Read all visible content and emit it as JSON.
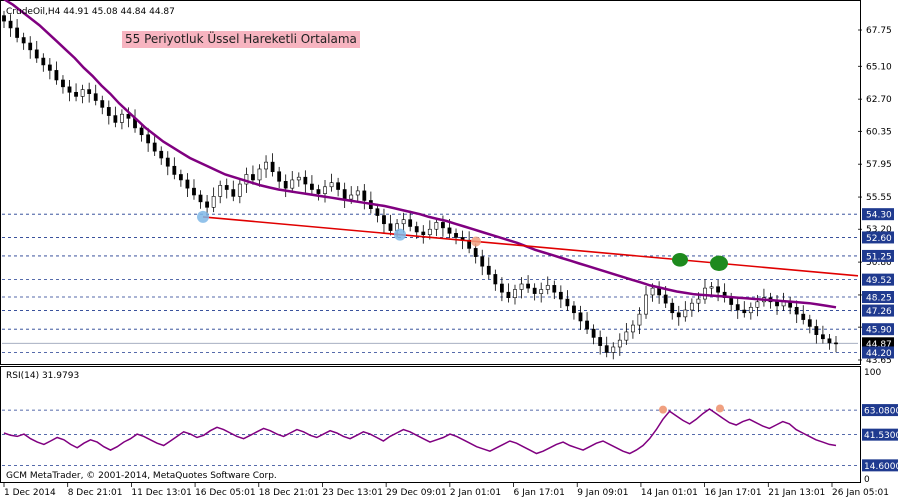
{
  "header": {
    "symbol_line": "CrudeOil,H4  44.91 45.08 44.84 44.87"
  },
  "annotation": {
    "ma_label": "55 Periyotluk Üssel Hareketli Ortalama",
    "ma_label_bg": "#f7b4c0"
  },
  "rsi": {
    "label": "RSI(14) 31.9793",
    "levels": [
      {
        "label": "63.0800",
        "value": 63.08
      },
      {
        "label": "41.5300",
        "value": 41.53
      },
      {
        "label": "14.6000",
        "value": 14.6
      }
    ],
    "scale_labels": [
      "100",
      "0"
    ]
  },
  "copyright": "GCM MetaTrader, © 2001-2014, MetaQuotes Software Corp.",
  "price_axis": {
    "ticks": [
      "67.75",
      "65.10",
      "62.70",
      "60.35",
      "57.95",
      "55.55",
      "53.20",
      "50.80",
      "48.40",
      "46.05",
      "43.65"
    ],
    "tick_values": [
      67.75,
      65.1,
      62.7,
      60.35,
      57.95,
      55.55,
      53.2,
      50.8,
      48.4,
      46.05,
      43.65
    ],
    "level_labels": [
      {
        "label": "54.30",
        "value": 54.3,
        "color": "#1f3a8f"
      },
      {
        "label": "52.60",
        "value": 52.6,
        "color": "#1f3a8f"
      },
      {
        "label": "51.25",
        "value": 51.25,
        "color": "#1f3a8f"
      },
      {
        "label": "49.52",
        "value": 49.52,
        "color": "#1f3a8f"
      },
      {
        "label": "48.25",
        "value": 48.25,
        "color": "#1f3a8f"
      },
      {
        "label": "47.26",
        "value": 47.26,
        "color": "#1f3a8f"
      },
      {
        "label": "45.90",
        "value": 45.9,
        "color": "#1f3a8f"
      },
      {
        "label": "44.87",
        "value": 44.87,
        "color": "#000000"
      },
      {
        "label": "44.20",
        "value": 44.2,
        "color": "#1f3a8f"
      }
    ]
  },
  "time_axis": {
    "ticks": [
      "1 Dec 2014",
      "8 Dec 21:01",
      "11 Dec 13:01",
      "16 Dec 05:01",
      "18 Dec 21:01",
      "23 Dec 13:01",
      "29 Dec 09:01",
      "2 Jan 01:01",
      "6 Jan 17:01",
      "9 Jan 09:01",
      "14 Jan 01:01",
      "16 Jan 17:01",
      "21 Jan 13:01",
      "26 Jan 05:01"
    ]
  },
  "colors": {
    "ema": "#800080",
    "trendline": "#e00000",
    "rsi_line": "#800080",
    "grid_dash": "#1f3a8f",
    "candle": "#000000"
  },
  "chart_data": {
    "type": "line",
    "price_closes": [
      68.4,
      67.9,
      67.2,
      66.8,
      66.3,
      65.7,
      65.2,
      64.8,
      64.1,
      63.6,
      63.2,
      62.9,
      63.4,
      63.1,
      62.6,
      62.1,
      61.5,
      61.0,
      61.6,
      61.3,
      60.6,
      60.1,
      59.5,
      58.9,
      58.4,
      57.8,
      57.2,
      56.8,
      56.2,
      55.7,
      55.2,
      54.8,
      55.6,
      56.4,
      56.1,
      55.6,
      56.5,
      57.2,
      56.8,
      57.6,
      58.1,
      57.4,
      56.7,
      56.2,
      56.8,
      57.0,
      56.5,
      56.1,
      55.8,
      56.3,
      56.6,
      56.1,
      55.4,
      55.7,
      56.0,
      55.3,
      54.7,
      54.2,
      53.6,
      53.1,
      53.6,
      53.9,
      53.4,
      53.0,
      52.8,
      53.2,
      53.7,
      53.3,
      52.9,
      52.6,
      52.4,
      51.8,
      51.2,
      50.5,
      49.9,
      49.2,
      48.6,
      48.2,
      48.8,
      49.2,
      48.9,
      48.5,
      48.8,
      49.1,
      48.6,
      48.1,
      47.6,
      47.1,
      46.5,
      45.9,
      45.3,
      44.7,
      44.2,
      44.6,
      45.1,
      45.7,
      46.2,
      47.0,
      48.4,
      48.9,
      48.4,
      47.8,
      47.1,
      46.8,
      47.3,
      47.8,
      48.1,
      48.9,
      49.0,
      48.6,
      48.2,
      47.7,
      47.3,
      47.1,
      47.5,
      47.9,
      48.2,
      47.9,
      47.6,
      47.9,
      47.5,
      47.0,
      46.6,
      46.1,
      45.5,
      45.2,
      44.9,
      44.87
    ],
    "ema55": [
      70.0,
      69.6,
      69.1,
      68.6,
      68.1,
      67.5,
      66.9,
      66.3,
      65.7,
      65.0,
      64.4,
      63.7,
      63.1,
      62.4,
      61.8,
      61.2,
      60.6,
      60.1,
      59.6,
      59.2,
      58.8,
      58.4,
      58.1,
      57.8,
      57.5,
      57.2,
      57.0,
      56.8,
      56.6,
      56.4,
      56.25,
      56.1,
      56.0,
      55.9,
      55.8,
      55.7,
      55.6,
      55.5,
      55.4,
      55.3,
      55.2,
      55.1,
      55.0,
      54.9,
      54.75,
      54.6,
      54.45,
      54.3,
      54.1,
      53.95,
      53.8,
      53.6,
      53.4,
      53.2,
      53.0,
      52.8,
      52.6,
      52.4,
      52.2,
      51.95,
      51.7,
      51.5,
      51.3,
      51.1,
      50.9,
      50.7,
      50.5,
      50.3,
      50.1,
      49.9,
      49.7,
      49.5,
      49.3,
      49.1,
      48.95,
      48.8,
      48.65,
      48.55,
      48.45,
      48.4,
      48.35,
      48.3,
      48.25,
      48.2,
      48.15,
      48.1,
      48.05,
      48.0,
      47.95,
      47.9,
      47.85,
      47.8,
      47.7,
      47.6,
      47.5
    ],
    "trendline": {
      "start_value": 54.1,
      "end_value": 49.8
    },
    "rsi_values": [
      43,
      41,
      40,
      42,
      38,
      35,
      33,
      36,
      39,
      37,
      33,
      30,
      34,
      37,
      35,
      31,
      28,
      31,
      35,
      38,
      42,
      40,
      37,
      34,
      32,
      36,
      40,
      44,
      42,
      39,
      41,
      45,
      48,
      46,
      43,
      40,
      38,
      41,
      44,
      47,
      45,
      42,
      40,
      43,
      46,
      44,
      41,
      39,
      42,
      45,
      43,
      40,
      38,
      41,
      44,
      42,
      39,
      36,
      40,
      43,
      46,
      44,
      41,
      38,
      35,
      37,
      39,
      42,
      40,
      37,
      34,
      31,
      29,
      27,
      30,
      33,
      36,
      34,
      31,
      28,
      25,
      27,
      30,
      33,
      35,
      32,
      30,
      28,
      31,
      34,
      36,
      33,
      30,
      27,
      25,
      28,
      32,
      38,
      46,
      55,
      62,
      58,
      54,
      51,
      55,
      60,
      64,
      60,
      56,
      52,
      50,
      53,
      55,
      52,
      49,
      47,
      50,
      53,
      51,
      46,
      43,
      40,
      37,
      35,
      33,
      31.98
    ],
    "levels_price": [
      54.3,
      52.6,
      51.25,
      49.52,
      48.25,
      47.26,
      45.9,
      44.2
    ]
  }
}
